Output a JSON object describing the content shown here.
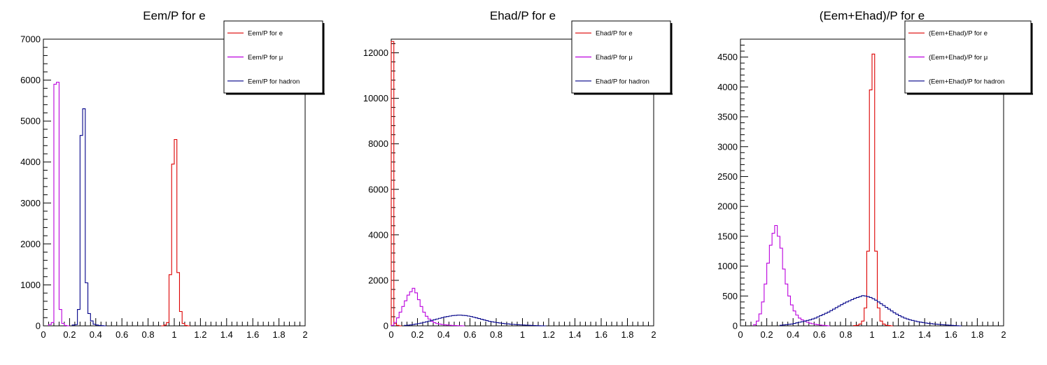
{
  "colors": {
    "electron": "#dd0000",
    "muon": "#bb00dd",
    "hadron": "#000088",
    "axis": "#000000"
  },
  "chart_data": [
    {
      "type": "histogram",
      "title": "Eem/P for e",
      "xlim": [
        0,
        2
      ],
      "ylim": [
        0,
        7000
      ],
      "xticks": [
        0,
        0.2,
        0.4,
        0.6,
        0.8,
        1,
        1.2,
        1.4,
        1.6,
        1.8,
        2
      ],
      "xtick_labels": [
        "0",
        "0.2",
        "0.4",
        "0.6",
        "0.8",
        "1",
        "1.2",
        "1.4",
        "1.6",
        "1.8",
        "2"
      ],
      "yticks": [
        0,
        1000,
        2000,
        3000,
        4000,
        5000,
        6000,
        7000
      ],
      "ytick_labels": [
        "0",
        "1000",
        "2000",
        "3000",
        "4000",
        "5000",
        "6000",
        "7000"
      ],
      "bin_width": 0.02,
      "legend_position": "top-right",
      "series": [
        {
          "name": "Eem/P for e",
          "color": "#dd0000",
          "bin_start": 0.9,
          "values": [
            0,
            20,
            80,
            1250,
            3950,
            4550,
            1300,
            350,
            60,
            10,
            0
          ]
        },
        {
          "name": "Eem/P for  μ",
          "color": "#bb00dd",
          "bin_start": 0.04,
          "values": [
            30,
            80,
            5900,
            5950,
            400,
            60,
            10,
            0
          ]
        },
        {
          "name": "Eem/P for hadron",
          "color": "#000088",
          "bin_start": 0.22,
          "values": [
            20,
            30,
            400,
            4650,
            5300,
            1050,
            300,
            120,
            40,
            20,
            10,
            5,
            0
          ]
        }
      ]
    },
    {
      "type": "histogram",
      "title": "Ehad/P for e",
      "xlim": [
        0,
        2
      ],
      "ylim": [
        0,
        12600
      ],
      "xticks": [
        0,
        0.2,
        0.4,
        0.6,
        0.8,
        1,
        1.2,
        1.4,
        1.6,
        1.8,
        2
      ],
      "xtick_labels": [
        "0",
        "0.2",
        "0.4",
        "0.6",
        "0.8",
        "1",
        "1.2",
        "1.4",
        "1.6",
        "1.8",
        "2"
      ],
      "yticks": [
        0,
        2000,
        4000,
        6000,
        8000,
        10000,
        12000
      ],
      "ytick_labels": [
        "0",
        "2000",
        "4000",
        "6000",
        "8000",
        "10000",
        "12000"
      ],
      "bin_width": 0.02,
      "legend_position": "top-right",
      "series": [
        {
          "name": "Ehad/P for e",
          "color": "#dd0000",
          "bin_start": 0,
          "values": [
            12500,
            100,
            20,
            0
          ]
        },
        {
          "name": "Ehad/P for μ",
          "color": "#bb00dd",
          "bin_start": 0,
          "values": [
            20,
            150,
            350,
            600,
            850,
            1100,
            1350,
            1500,
            1650,
            1450,
            1150,
            850,
            600,
            420,
            300,
            200,
            140,
            100,
            80,
            60,
            45,
            35,
            25,
            18,
            12,
            8,
            5,
            0
          ]
        },
        {
          "name": "Ehad/P for hadron",
          "color": "#000088",
          "bin_start": 0.1,
          "values": [
            20,
            30,
            40,
            60,
            80,
            100,
            120,
            150,
            180,
            210,
            240,
            270,
            300,
            330,
            360,
            390,
            410,
            430,
            450,
            460,
            470,
            470,
            460,
            450,
            430,
            410,
            380,
            350,
            320,
            290,
            260,
            230,
            200,
            180,
            160,
            140,
            125,
            110,
            95,
            85,
            75,
            65,
            55,
            48,
            42,
            36,
            30,
            25,
            20,
            15,
            10,
            5,
            3,
            0
          ]
        }
      ]
    },
    {
      "type": "histogram",
      "title": "(Eem+Ehad)/P for e",
      "xlim": [
        0,
        2
      ],
      "ylim": [
        0,
        4800
      ],
      "xticks": [
        0,
        0.2,
        0.4,
        0.6,
        0.8,
        1,
        1.2,
        1.4,
        1.6,
        1.8,
        2
      ],
      "xtick_labels": [
        "0",
        "0.2",
        "0.4",
        "0.6",
        "0.8",
        "1",
        "1.2",
        "1.4",
        "1.6",
        "1.8",
        "2"
      ],
      "yticks": [
        0,
        500,
        1000,
        1500,
        2000,
        2500,
        3000,
        3500,
        4000,
        4500
      ],
      "ytick_labels": [
        "0",
        "500",
        "1000",
        "1500",
        "2000",
        "2500",
        "3000",
        "3500",
        "4000",
        "4500"
      ],
      "bin_width": 0.02,
      "legend_position": "top-right",
      "series": [
        {
          "name": "(Eem+Ehad)/P for e",
          "color": "#dd0000",
          "bin_start": 0.86,
          "values": [
            5,
            10,
            30,
            80,
            300,
            1250,
            3950,
            4550,
            1250,
            300,
            80,
            30,
            10,
            5,
            0
          ]
        },
        {
          "name": "(Eem+Ehad)/P for μ",
          "color": "#bb00dd",
          "bin_start": 0.1,
          "values": [
            20,
            80,
            200,
            400,
            700,
            1050,
            1350,
            1550,
            1680,
            1500,
            1300,
            950,
            700,
            500,
            350,
            250,
            180,
            130,
            100,
            80,
            60,
            45,
            35,
            25,
            18,
            12,
            8,
            5,
            0
          ]
        },
        {
          "name": "(Eem+Ehad)/P for hadron",
          "color": "#000088",
          "bin_start": 0.3,
          "values": [
            10,
            15,
            20,
            25,
            30,
            40,
            50,
            60,
            70,
            80,
            90,
            100,
            115,
            130,
            150,
            170,
            190,
            210,
            230,
            255,
            280,
            305,
            330,
            355,
            380,
            400,
            420,
            440,
            460,
            475,
            490,
            505,
            500,
            490,
            475,
            455,
            430,
            400,
            370,
            340,
            310,
            280,
            250,
            220,
            195,
            170,
            150,
            130,
            115,
            100,
            90,
            80,
            70,
            62,
            55,
            48,
            42,
            37,
            32,
            28,
            24,
            20,
            17,
            14,
            11,
            8,
            5,
            3,
            0
          ]
        }
      ]
    }
  ]
}
